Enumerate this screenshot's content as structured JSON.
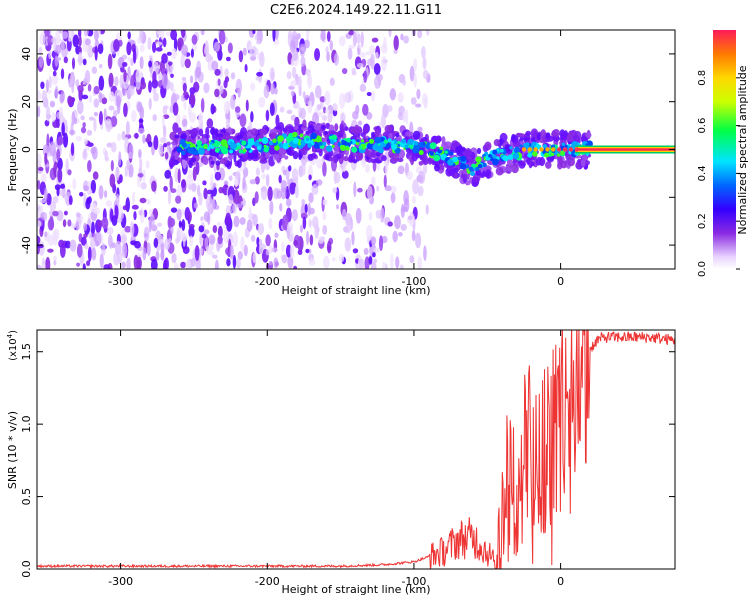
{
  "title": "C2E6.2024.149.22.11.G11",
  "chart_data": [
    {
      "type": "heatmap",
      "xlabel": "Height of straight line (km)",
      "ylabel": "Frequency (Hz)",
      "xlim": [
        -357,
        78
      ],
      "ylim": [
        -50,
        50
      ],
      "xticks": [
        -300,
        -200,
        -100,
        0
      ],
      "yticks": [
        -40,
        -20,
        0,
        20,
        40
      ],
      "colorbar": {
        "label": "Normalized spectral amplitude",
        "range": [
          0.0,
          1.0
        ],
        "ticks": [
          0.0,
          0.2,
          0.4,
          0.6,
          0.8
        ],
        "tick_labels": [
          "0.0",
          "0.2",
          "0.4",
          "0.6",
          "0.8"
        ],
        "colormap": "rainbow (purple to red)"
      },
      "ridge": {
        "description": "dominant frequency line vs height",
        "x": [
          -260,
          -220,
          -200,
          -180,
          -160,
          -140,
          -120,
          -100,
          -80,
          -70,
          -60,
          -50,
          -40,
          -30,
          -20,
          -10,
          0,
          10,
          20,
          40,
          78
        ],
        "y": [
          1,
          1,
          2,
          4,
          3,
          2,
          2,
          2,
          -2,
          -5,
          -8,
          -4,
          -2,
          -1,
          0,
          0,
          0,
          0,
          0,
          0,
          0
        ]
      },
      "grid": false
    },
    {
      "type": "line",
      "xlabel": "Height of straight line (km)",
      "ylabel": "SNR (10 * v/v)",
      "y_multiplier_label": "(x10",
      "y_multiplier_exp": "4",
      "y_multiplier_close": ")",
      "xlim": [
        -357,
        78
      ],
      "ylim": [
        0,
        1.65
      ],
      "xticks": [
        -300,
        -200,
        -100,
        0
      ],
      "yticks": [
        0.0,
        0.5,
        1.0,
        1.5
      ],
      "ytick_labels": [
        "0.0",
        "0.5",
        "1.0",
        "1.5"
      ],
      "color": "#ee3333",
      "series": [
        {
          "x": [
            -357,
            -330,
            -300,
            -250,
            -200,
            -150,
            -120,
            -100,
            -80,
            -70,
            -60,
            -50,
            -45,
            -40,
            -35,
            -30,
            -25,
            -20,
            -15,
            -10,
            -5,
            0,
            5,
            10,
            15,
            20,
            25,
            30,
            40,
            50,
            60,
            78
          ],
          "y": [
            0.02,
            0.02,
            0.02,
            0.02,
            0.02,
            0.02,
            0.03,
            0.05,
            0.12,
            0.2,
            0.22,
            0.12,
            0.05,
            0.3,
            0.6,
            0.5,
            0.75,
            0.8,
            0.9,
            0.85,
            0.95,
            1.05,
            1.15,
            1.3,
            1.45,
            1.52,
            1.58,
            1.6,
            1.6,
            1.6,
            1.6,
            1.58
          ]
        }
      ],
      "grid": false
    }
  ]
}
